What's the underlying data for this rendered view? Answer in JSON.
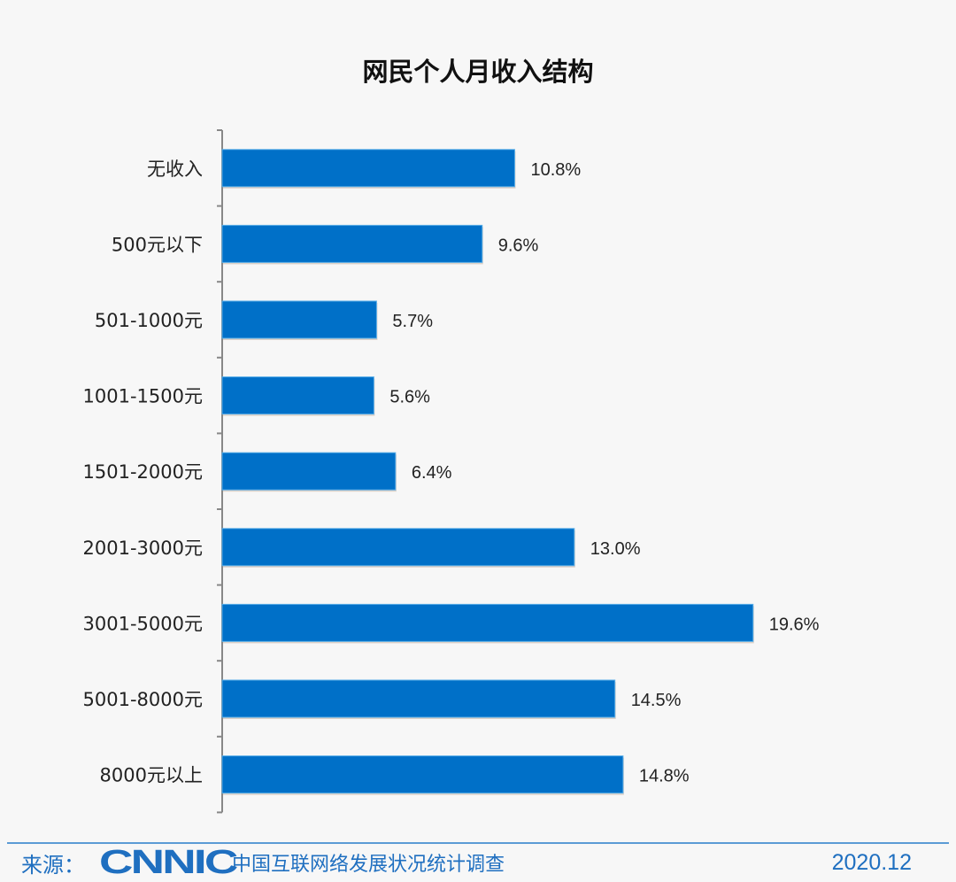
{
  "chart_data": {
    "type": "bar",
    "orientation": "horizontal",
    "title": "网民个人月收入结构",
    "categories": [
      "无收入",
      "500元以下",
      "501-1000元",
      "1001-1500元",
      "1501-2000元",
      "2001-3000元",
      "3001-5000元",
      "5001-8000元",
      "8000元以上"
    ],
    "values": [
      10.8,
      9.6,
      5.7,
      5.6,
      6.4,
      13.0,
      19.6,
      14.5,
      14.8
    ],
    "labels": [
      "10.8%",
      "9.6%",
      "5.7%",
      "5.6%",
      "6.4%",
      "13.0%",
      "19.6%",
      "14.5%",
      "14.8%"
    ],
    "unit": "%",
    "bar_color": "#0070c8",
    "grid": false,
    "legend": "none"
  },
  "footer": {
    "source_label": "来源：",
    "logo_text": "CNNIC",
    "survey_name": "中国互联网络发展状况统计调查",
    "date": "2020.12"
  },
  "colors": {
    "accent": "#1f6fc0",
    "background": "#f7f7f7"
  }
}
